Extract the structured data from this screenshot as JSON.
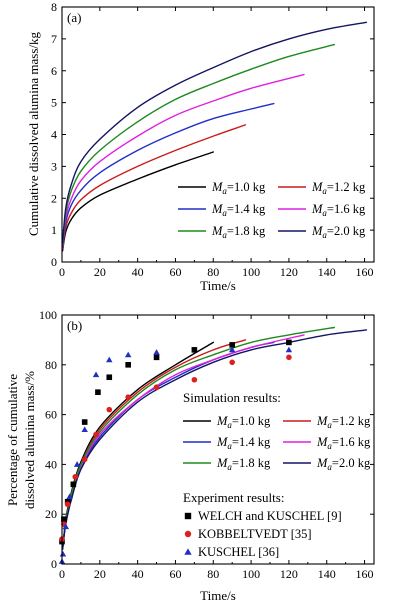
{
  "chart_data": [
    {
      "type": "line",
      "panel_label": "(a)",
      "xlabel": "Time/s",
      "ylabel": "Cumulative dissolved alumina mass/kg",
      "xlim": [
        0,
        165
      ],
      "ylim": [
        0,
        8
      ],
      "xticks": [
        "0",
        "20",
        "40",
        "60",
        "80",
        "100",
        "120",
        "140",
        "160"
      ],
      "yticks": [
        "0",
        "1",
        "2",
        "3",
        "4",
        "5",
        "6",
        "7",
        "8"
      ],
      "legend_position": "bottom-right",
      "series": [
        {
          "name": "M_a=1.0 kg",
          "mass": "1.0",
          "color": "#000000",
          "x": [
            0.3,
            2,
            5,
            10,
            20,
            40,
            60,
            80
          ],
          "y": [
            0.35,
            0.95,
            1.35,
            1.7,
            2.1,
            2.6,
            3.05,
            3.45
          ]
        },
        {
          "name": "M_a=1.2 kg",
          "mass": "1.2",
          "color": "#cc1a1a",
          "x": [
            0.3,
            2,
            5,
            10,
            20,
            40,
            60,
            80,
            97
          ],
          "y": [
            0.4,
            1.1,
            1.55,
            1.95,
            2.4,
            3.0,
            3.5,
            3.95,
            4.3
          ]
        },
        {
          "name": "M_a=1.4 kg",
          "mass": "1.4",
          "color": "#1f2fc8",
          "x": [
            0.3,
            2,
            5,
            10,
            20,
            40,
            60,
            80,
            100,
            112
          ],
          "y": [
            0.45,
            1.25,
            1.8,
            2.25,
            2.8,
            3.5,
            4.05,
            4.5,
            4.8,
            4.97
          ]
        },
        {
          "name": "M_a=1.6 kg",
          "mass": "1.6",
          "color": "#e020e0",
          "x": [
            0.3,
            2,
            5,
            10,
            20,
            40,
            60,
            80,
            100,
            128
          ],
          "y": [
            0.5,
            1.4,
            2.0,
            2.55,
            3.15,
            3.95,
            4.6,
            5.05,
            5.45,
            5.88
          ]
        },
        {
          "name": "M_a=1.8 kg",
          "mass": "1.8",
          "color": "#1e8a1e",
          "x": [
            0.3,
            2,
            5,
            10,
            20,
            40,
            60,
            80,
            100,
            120,
            144
          ],
          "y": [
            0.55,
            1.55,
            2.25,
            2.85,
            3.5,
            4.4,
            5.1,
            5.6,
            6.05,
            6.45,
            6.82
          ]
        },
        {
          "name": "M_a=2.0 kg",
          "mass": "2.0",
          "color": "#141464",
          "x": [
            0.3,
            2,
            5,
            10,
            20,
            40,
            60,
            80,
            100,
            120,
            140,
            161
          ],
          "y": [
            0.6,
            1.7,
            2.45,
            3.15,
            3.85,
            4.85,
            5.55,
            6.1,
            6.6,
            7.0,
            7.3,
            7.52
          ]
        }
      ]
    },
    {
      "type": "line",
      "panel_label": "(b)",
      "xlabel": "Time/s",
      "ylabel": [
        "Percentage of cumulative",
        "dissolved alumina mass/%"
      ],
      "xlim": [
        0,
        165
      ],
      "ylim": [
        0,
        100
      ],
      "xticks": [
        "0",
        "20",
        "40",
        "60",
        "80",
        "100",
        "120",
        "140",
        "160"
      ],
      "yticks": [
        "0",
        "20",
        "40",
        "60",
        "80",
        "100"
      ],
      "legend_heading": "Simulation results:",
      "series": [
        {
          "name": "M_a=1.0 kg",
          "mass": "1.0",
          "color": "#000000",
          "x": [
            0.3,
            2,
            5,
            10,
            20,
            40,
            60,
            80
          ],
          "y": [
            6,
            18,
            29,
            41,
            55,
            70,
            80,
            89
          ]
        },
        {
          "name": "M_a=1.2 kg",
          "mass": "1.2",
          "color": "#cc1a1a",
          "x": [
            0.3,
            2,
            5,
            10,
            20,
            40,
            60,
            80,
            97
          ],
          "y": [
            6,
            17,
            28,
            40,
            54,
            69,
            79,
            86,
            90
          ]
        },
        {
          "name": "M_a=1.4 kg",
          "mass": "1.4",
          "color": "#1f2fc8",
          "x": [
            0.3,
            2,
            5,
            10,
            20,
            40,
            60,
            80,
            100,
            112
          ],
          "y": [
            6,
            17,
            27,
            39,
            51,
            66,
            75,
            82,
            87,
            89
          ]
        },
        {
          "name": "M_a=1.6 kg",
          "mass": "1.6",
          "color": "#e020e0",
          "x": [
            0.3,
            2,
            5,
            10,
            20,
            40,
            60,
            80,
            100,
            128
          ],
          "y": [
            6,
            17,
            27,
            39,
            52,
            66,
            76,
            82,
            87,
            92
          ]
        },
        {
          "name": "M_a=1.8 kg",
          "mass": "1.8",
          "color": "#1e8a1e",
          "x": [
            0.3,
            2,
            5,
            10,
            20,
            40,
            60,
            80,
            100,
            120,
            144
          ],
          "y": [
            6,
            17,
            28,
            40,
            53,
            68,
            78,
            84,
            89,
            92,
            95
          ]
        },
        {
          "name": "M_a=2.0 kg",
          "mass": "2.0",
          "color": "#141464",
          "x": [
            0.3,
            2,
            5,
            10,
            20,
            40,
            60,
            80,
            100,
            120,
            140,
            161
          ],
          "y": [
            6,
            16,
            26,
            38,
            50,
            65,
            74,
            81,
            86,
            89,
            92,
            94
          ]
        }
      ],
      "experiment_heading": "Experiment results:",
      "experiments": [
        {
          "name": "WELCH and KUSCHEL [9]",
          "marker": "square",
          "color": "#000000",
          "x": [
            0,
            1,
            3,
            6,
            12,
            19,
            25,
            35,
            50,
            70,
            90,
            120
          ],
          "y": [
            9,
            18,
            25,
            32,
            57,
            69,
            75,
            80,
            83,
            86,
            88,
            89
          ]
        },
        {
          "name": "KOBBELTVEDT [35]",
          "marker": "circle",
          "color": "#dd1f1f",
          "x": [
            0,
            1,
            3,
            7,
            12,
            18,
            25,
            35,
            50,
            70,
            90,
            120
          ],
          "y": [
            10,
            16,
            24,
            35,
            42,
            52,
            62,
            67,
            71,
            74,
            81,
            83
          ]
        },
        {
          "name": "KUSCHEL [36]",
          "marker": "triangle",
          "color": "#1f2fc8",
          "x": [
            0,
            0.5,
            2,
            4,
            8,
            12,
            18,
            25,
            35,
            50,
            90,
            120
          ],
          "y": [
            1,
            4,
            15,
            27,
            40,
            54,
            76,
            82,
            84,
            85,
            86,
            86
          ]
        }
      ]
    }
  ]
}
